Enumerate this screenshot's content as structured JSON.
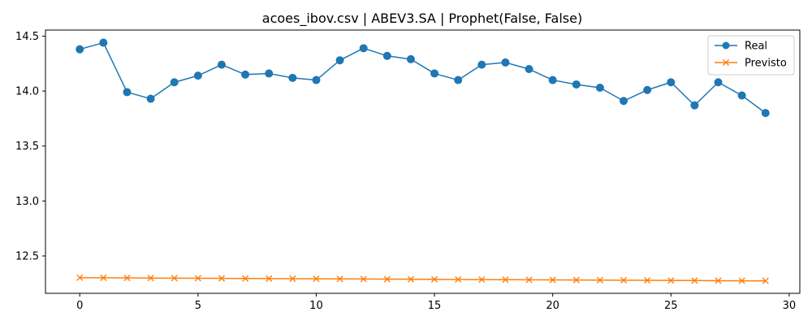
{
  "chart_data": {
    "type": "line",
    "title": "acoes_ibov.csv | ABEV3.SA | Prophet(False, False)",
    "xlabel": "",
    "ylabel": "",
    "xlim": [
      -1.45,
      30.45
    ],
    "ylim": [
      12.16,
      14.555
    ],
    "x_ticks": [
      0,
      5,
      10,
      15,
      20,
      25,
      30
    ],
    "y_ticks": [
      12.5,
      13.0,
      13.5,
      14.0,
      14.5
    ],
    "x_tick_labels": [
      "0",
      "5",
      "10",
      "15",
      "20",
      "25",
      "30"
    ],
    "y_tick_labels": [
      "12.5",
      "13.0",
      "13.5",
      "14.0",
      "14.5"
    ],
    "grid": false,
    "legend_position": "top-right",
    "x": [
      0,
      1,
      2,
      3,
      4,
      5,
      6,
      7,
      8,
      9,
      10,
      11,
      12,
      13,
      14,
      15,
      16,
      17,
      18,
      19,
      20,
      21,
      22,
      23,
      24,
      25,
      26,
      27,
      28,
      29
    ],
    "series": [
      {
        "name": "Real",
        "color": "#1f77b4",
        "marker": "circle",
        "values": [
          14.38,
          14.44,
          13.99,
          13.93,
          14.08,
          14.14,
          14.24,
          14.15,
          14.16,
          14.12,
          14.1,
          14.28,
          14.39,
          14.32,
          14.29,
          14.16,
          14.1,
          14.24,
          14.26,
          14.2,
          14.1,
          14.06,
          14.03,
          13.91,
          14.01,
          14.08,
          13.87,
          14.08,
          13.96,
          13.8
        ]
      },
      {
        "name": "Previsto",
        "color": "#ff7f0e",
        "marker": "x",
        "values": [
          12.302,
          12.301,
          12.3,
          12.299,
          12.298,
          12.297,
          12.296,
          12.295,
          12.294,
          12.293,
          12.292,
          12.291,
          12.29,
          12.289,
          12.288,
          12.287,
          12.286,
          12.285,
          12.284,
          12.283,
          12.282,
          12.281,
          12.28,
          12.279,
          12.278,
          12.277,
          12.276,
          12.275,
          12.274,
          12.273
        ]
      }
    ]
  }
}
